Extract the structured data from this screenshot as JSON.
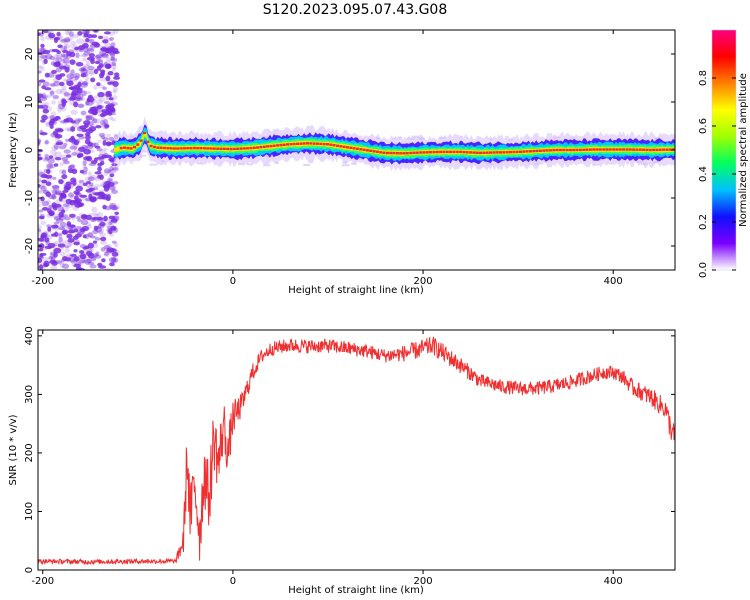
{
  "figure": {
    "title": "S120.2023.095.07.43.G08"
  },
  "colors": {
    "snr_line": "#f03030",
    "scatter_noise": "#7a2ee0",
    "ridge_core": "#e8322e",
    "colorbar_stops": [
      "#ffffff",
      "#7a00ff",
      "#1010ff",
      "#00c0ff",
      "#00ff60",
      "#a0ff00",
      "#ffff00",
      "#ff8000",
      "#ff0000",
      "#ff0080"
    ]
  },
  "chart_data": [
    {
      "id": "spectrogram",
      "type": "heatmap",
      "xlabel": "Height of straight line (km)",
      "ylabel": "Frequency (Hz)",
      "xlim": [
        -205,
        465
      ],
      "ylim": [
        -25,
        25
      ],
      "xticks": [
        -200,
        0,
        200,
        400
      ],
      "yticks": [
        -20,
        -10,
        0,
        10,
        20
      ],
      "noise_region_x": [
        -205,
        -122
      ],
      "ridge": {
        "x": [
          -125,
          -115,
          -105,
          -97,
          -92,
          -88,
          -80,
          -60,
          -40,
          -20,
          0,
          20,
          40,
          60,
          80,
          100,
          120,
          140,
          160,
          180,
          200,
          220,
          240,
          260,
          280,
          300,
          320,
          340,
          360,
          380,
          400,
          420,
          440,
          465
        ],
        "freq": [
          0,
          0.5,
          0.3,
          1.5,
          3.8,
          1.0,
          0.5,
          0.3,
          0.4,
          0.3,
          0.2,
          0.4,
          0.8,
          1.2,
          1.4,
          1.2,
          0.6,
          0,
          -0.6,
          -0.7,
          -0.5,
          -0.4,
          -0.4,
          -0.6,
          -0.5,
          -0.4,
          -0.2,
          0,
          0,
          0.1,
          0.1,
          0.1,
          0,
          0.1
        ]
      },
      "colorbar": {
        "label": "Normalized spectral amplitude",
        "range": [
          0,
          1
        ],
        "ticks": [
          "0.0",
          "0.2",
          "0.4",
          "0.6",
          "0.8"
        ]
      }
    },
    {
      "id": "snr",
      "type": "line",
      "xlabel": "Height of straight line (km)",
      "ylabel": "SNR (10 * v/v)",
      "xlim": [
        -205,
        465
      ],
      "ylim": [
        0,
        410
      ],
      "xticks": [
        -200,
        0,
        200,
        400
      ],
      "yticks": [
        0,
        100,
        200,
        300,
        400
      ],
      "series": [
        {
          "x": [
            -205,
            -150,
            -100,
            -60,
            -52,
            -48,
            -45,
            -40,
            -35,
            -30,
            -25,
            -20,
            -15,
            -10,
            -5,
            0,
            5,
            10,
            15,
            20,
            25,
            30,
            40,
            60,
            80,
            100,
            120,
            140,
            160,
            180,
            200,
            210,
            220,
            240,
            260,
            280,
            300,
            320,
            340,
            360,
            380,
            390,
            400,
            410,
            420,
            440,
            455,
            460,
            465
          ],
          "values": [
            15,
            14,
            15,
            15,
            50,
            200,
            90,
            150,
            60,
            170,
            120,
            230,
            180,
            250,
            200,
            260,
            270,
            285,
            310,
            335,
            350,
            365,
            378,
            384,
            382,
            383,
            379,
            374,
            366,
            370,
            378,
            384,
            372,
            349,
            323,
            314,
            310,
            310,
            315,
            323,
            333,
            338,
            338,
            330,
            312,
            295,
            275,
            245,
            225
          ],
          "noise": [
            4,
            4,
            4,
            4,
            25,
            60,
            50,
            60,
            50,
            60,
            55,
            60,
            50,
            50,
            40,
            30,
            25,
            20,
            18,
            16,
            14,
            12,
            12,
            12,
            12,
            12,
            12,
            12,
            12,
            14,
            16,
            16,
            16,
            14,
            12,
            12,
            12,
            12,
            12,
            12,
            12,
            12,
            12,
            12,
            14,
            16,
            18,
            22,
            22
          ]
        }
      ]
    }
  ]
}
